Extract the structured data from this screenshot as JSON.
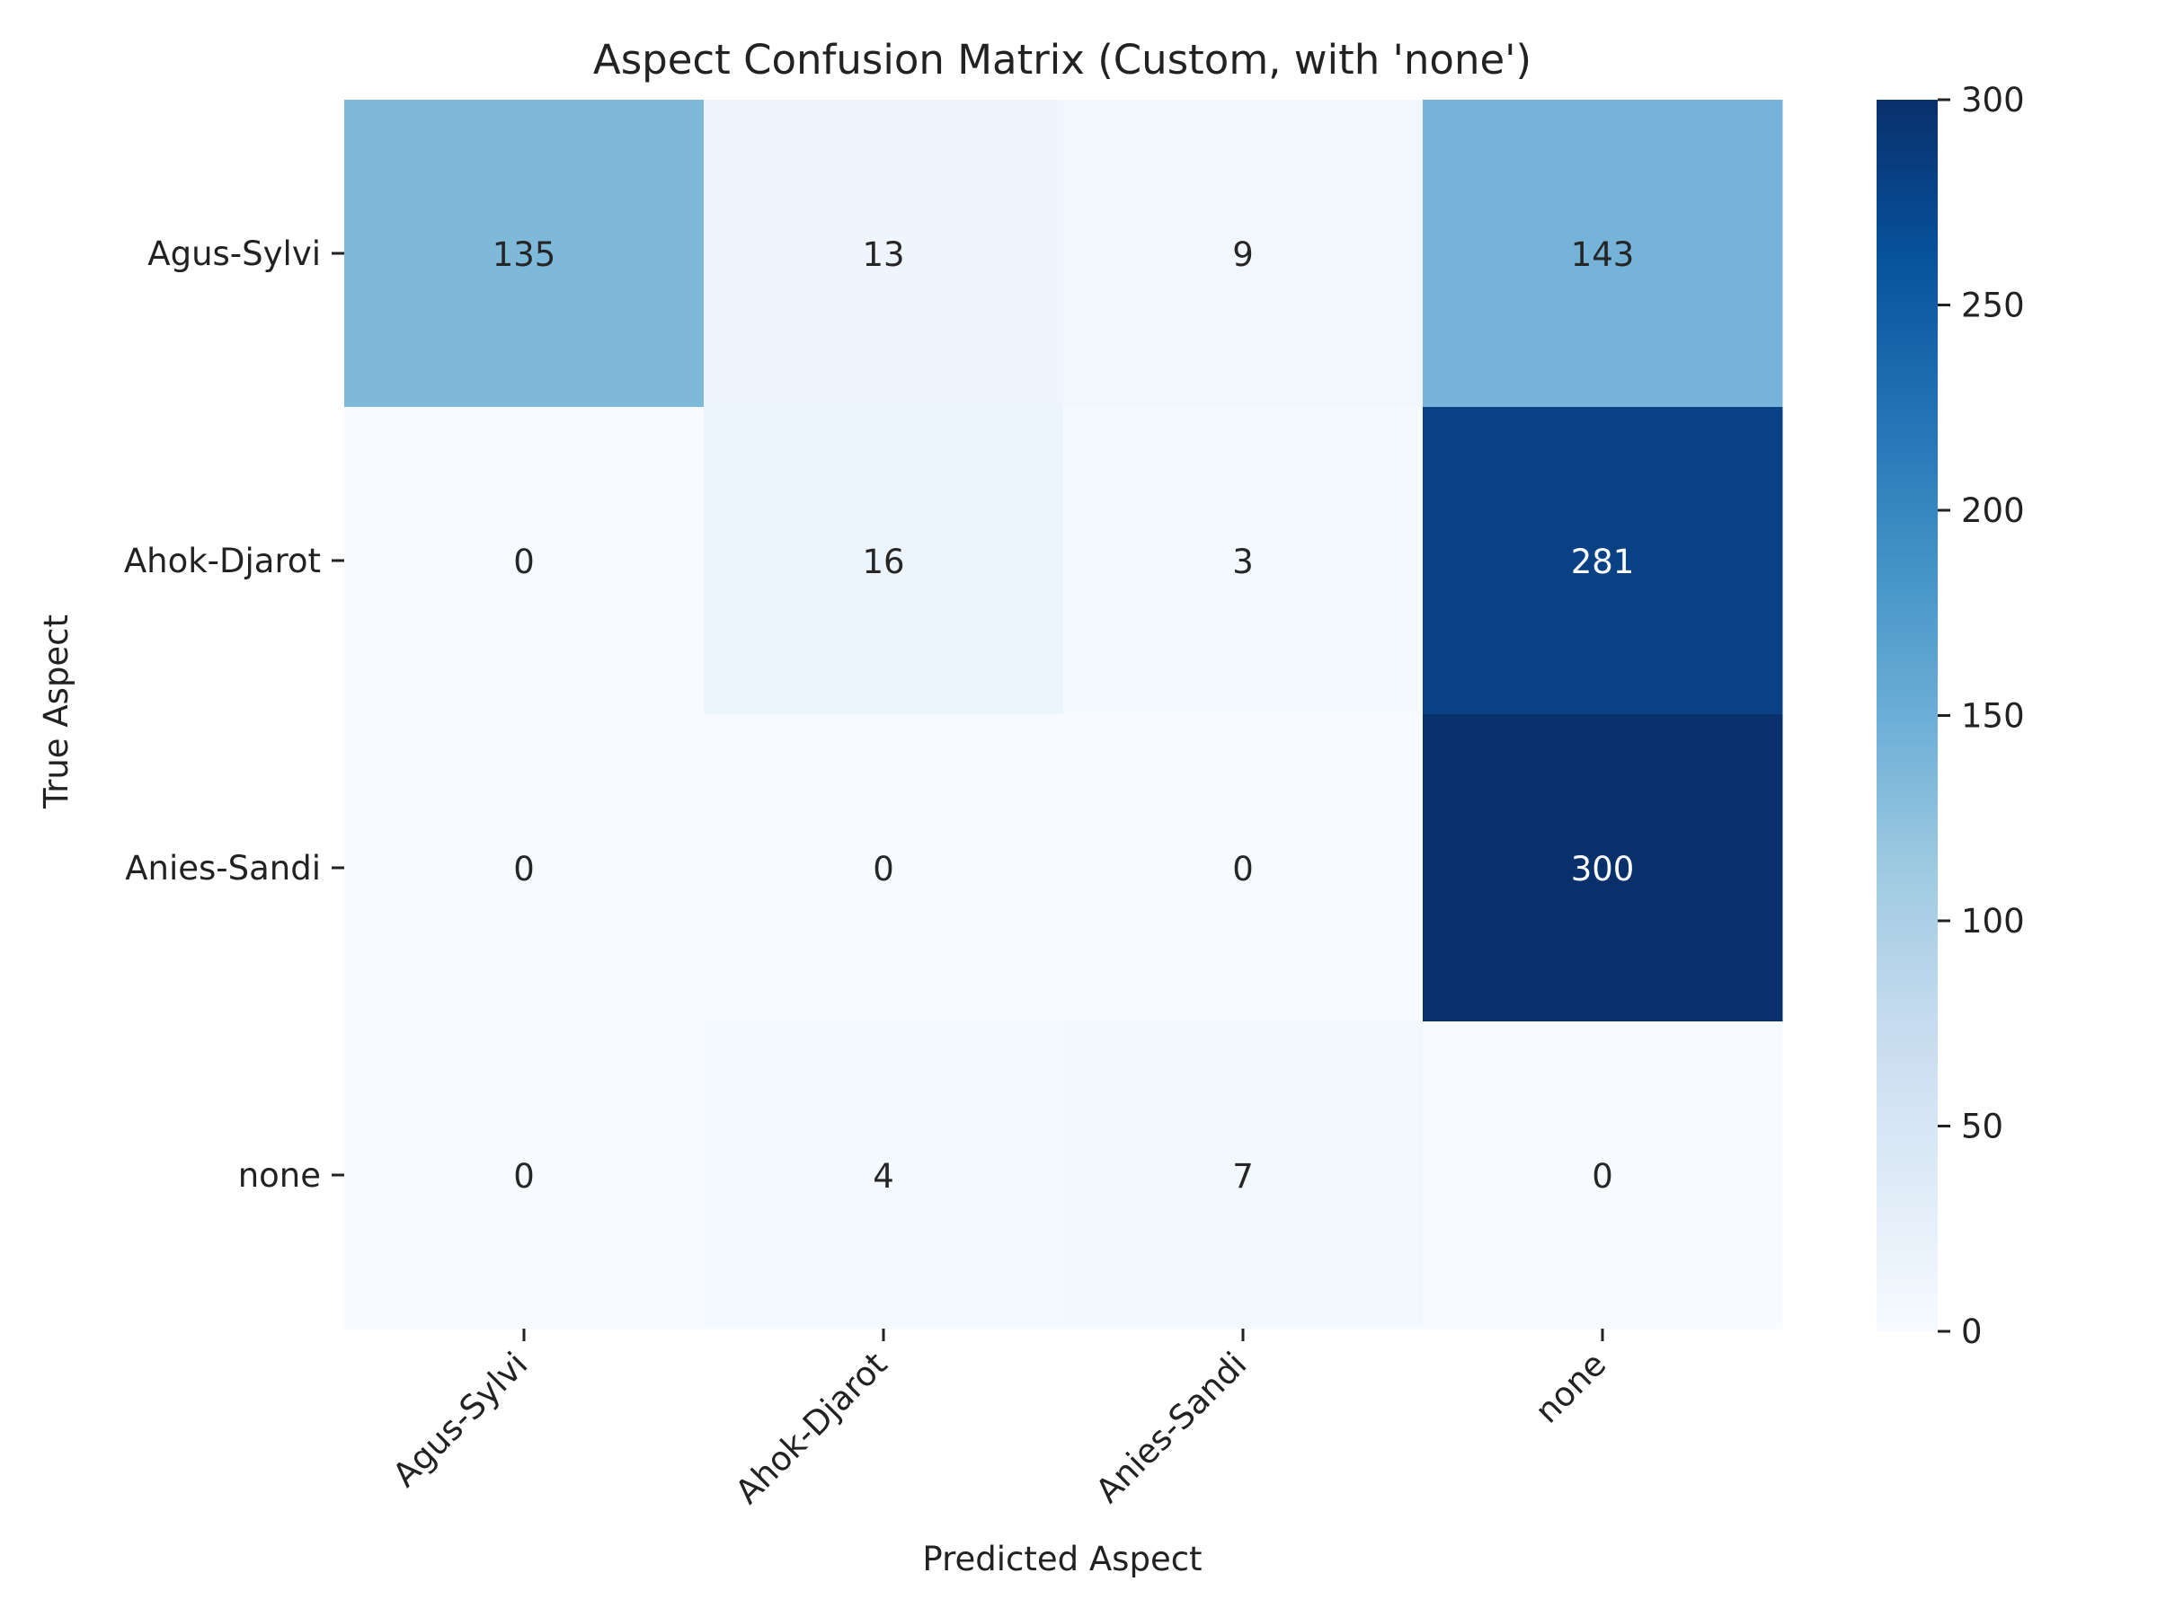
{
  "chart_data": {
    "type": "heatmap",
    "title": "Aspect Confusion Matrix (Custom, with 'none')",
    "xlabel": "Predicted Aspect",
    "ylabel": "True Aspect",
    "x_categories": [
      "Agus-Sylvi",
      "Ahok-Djarot",
      "Anies-Sandi",
      "none"
    ],
    "y_categories": [
      "Agus-Sylvi",
      "Ahok-Djarot",
      "Anies-Sandi",
      "none"
    ],
    "values": [
      [
        135,
        13,
        9,
        143
      ],
      [
        0,
        16,
        3,
        281
      ],
      [
        0,
        0,
        0,
        300
      ],
      [
        0,
        4,
        7,
        0
      ]
    ],
    "colorbar": {
      "range": [
        0,
        300
      ],
      "ticks": [
        0,
        50,
        100,
        150,
        200,
        250,
        300
      ]
    },
    "colormap": "Blues"
  }
}
